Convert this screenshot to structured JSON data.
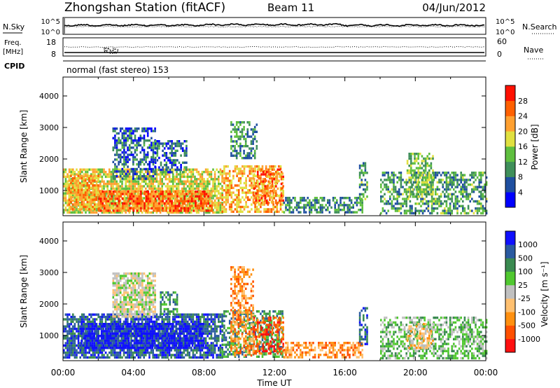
{
  "header": {
    "station": "Zhongshan Station (fitACF)",
    "beam": "Beam 11",
    "date": "04/Jun/2012"
  },
  "nsky_panel": {
    "left_label": "N.Sky",
    "left_ticks": [
      "10^5",
      "10^0"
    ],
    "right_ticks": [
      "10^5",
      "10^0"
    ],
    "right_label": "N.Search"
  },
  "freq_panel": {
    "left_label_1": "Freq.",
    "left_label_2": "[MHz]",
    "left_ticks": [
      "18",
      "8"
    ],
    "right_ticks": [
      "60",
      "0"
    ],
    "right_label": "Nave"
  },
  "cpid_panel": {
    "label": "CPID",
    "text": "normal (fast stereo) 153"
  },
  "time_axis": {
    "labels": [
      "00:00",
      "04:00",
      "08:00",
      "12:00",
      "16:00",
      "20:00",
      "00:00"
    ],
    "title": "Time UT"
  },
  "colors": {
    "power": [
      "#0000ff",
      "#1f4fa0",
      "#3f8f5a",
      "#5fbf3f",
      "#e0e040",
      "#ffa030",
      "#ff6000",
      "#ff1000"
    ],
    "velocity": [
      "#ff1010",
      "#ff5000",
      "#ff9010",
      "#ffc070",
      "#c0c0c0",
      "#50c830",
      "#3a8a50",
      "#2a5aa0",
      "#1010ff"
    ]
  },
  "chart_data": [
    {
      "type": "heatmap",
      "panel": "power",
      "ylabel": "Slant Range [km]",
      "yticks": [
        "1000",
        "2000",
        "3000",
        "4000"
      ],
      "ylim": [
        200,
        4600
      ],
      "xlim": [
        0,
        24
      ],
      "colorbar": {
        "title": "Power [dB]",
        "labels": [
          "4",
          "8",
          "12",
          "16",
          "20",
          "24",
          "28"
        ],
        "range": [
          0,
          32
        ]
      },
      "regions": [
        {
          "t0": 0.0,
          "t1": 9.0,
          "r0": 300,
          "r1": 1700,
          "level": 20
        },
        {
          "t0": 2.0,
          "t1": 8.5,
          "r0": 350,
          "r1": 1000,
          "level": 27
        },
        {
          "t0": 0.3,
          "t1": 2.0,
          "r0": 400,
          "r1": 1500,
          "level": 24
        },
        {
          "t0": 2.8,
          "t1": 5.2,
          "r0": 1400,
          "r1": 3000,
          "level": 9
        },
        {
          "t0": 5.2,
          "t1": 7.0,
          "r0": 1600,
          "r1": 2600,
          "level": 9
        },
        {
          "t0": 9.0,
          "t1": 12.5,
          "r0": 300,
          "r1": 1800,
          "level": 24
        },
        {
          "t0": 9.5,
          "t1": 11.0,
          "r0": 2000,
          "r1": 3200,
          "level": 12
        },
        {
          "t0": 10.8,
          "t1": 12.5,
          "r0": 600,
          "r1": 1700,
          "level": 26
        },
        {
          "t0": 12.5,
          "t1": 17.0,
          "r0": 300,
          "r1": 800,
          "level": 12
        },
        {
          "t0": 16.8,
          "t1": 17.3,
          "r0": 700,
          "r1": 1900,
          "level": 13
        },
        {
          "t0": 18.0,
          "t1": 24.0,
          "r0": 300,
          "r1": 1600,
          "level": 13
        },
        {
          "t0": 19.5,
          "t1": 21.0,
          "r0": 800,
          "r1": 2200,
          "level": 16
        }
      ]
    },
    {
      "type": "heatmap",
      "panel": "velocity",
      "ylabel": "Slant Range [km]",
      "yticks": [
        "1000",
        "2000",
        "3000",
        "4000"
      ],
      "ylim": [
        200,
        4600
      ],
      "xlim": [
        0,
        24
      ],
      "colorbar": {
        "title": "Velocity [m s⁻¹]",
        "labels": [
          "-1000",
          "-500",
          "-100",
          "-25",
          "25",
          "100",
          "500",
          "1000"
        ]
      },
      "regions": [
        {
          "t0": 0.0,
          "t1": 9.0,
          "r0": 300,
          "r1": 1700,
          "level": 7
        },
        {
          "t0": 1.0,
          "t1": 8.0,
          "r0": 600,
          "r1": 1400,
          "level": 8
        },
        {
          "t0": 2.8,
          "t1": 5.2,
          "r0": 1600,
          "r1": 3000,
          "level": 4
        },
        {
          "t0": 5.5,
          "t1": 6.5,
          "r0": 1700,
          "r1": 2400,
          "level": 6
        },
        {
          "t0": 9.0,
          "t1": 12.5,
          "r0": 300,
          "r1": 1800,
          "level": 6
        },
        {
          "t0": 9.5,
          "t1": 10.8,
          "r0": 400,
          "r1": 3200,
          "level": 2
        },
        {
          "t0": 10.8,
          "t1": 12.5,
          "r0": 400,
          "r1": 1600,
          "level": 1
        },
        {
          "t0": 12.5,
          "t1": 17.0,
          "r0": 300,
          "r1": 800,
          "level": 2
        },
        {
          "t0": 16.8,
          "t1": 17.3,
          "r0": 700,
          "r1": 1900,
          "level": 7
        },
        {
          "t0": 18.0,
          "t1": 24.0,
          "r0": 300,
          "r1": 1600,
          "level": 5
        },
        {
          "t0": 19.5,
          "t1": 21.0,
          "r0": 600,
          "r1": 1400,
          "level": 3
        }
      ]
    }
  ]
}
